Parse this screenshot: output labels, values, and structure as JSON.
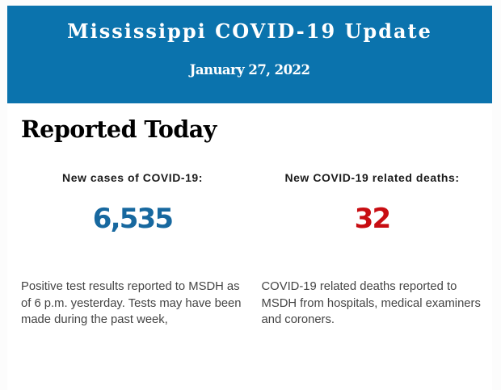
{
  "page": {
    "background_color": "#fcfcfc",
    "card_background_color": "#ffffff"
  },
  "header": {
    "title": "Mississippi COVID-19 Update",
    "date": "January 27, 2022",
    "background_color": "#0b73ad",
    "text_color": "#ffffff"
  },
  "report": {
    "heading": "Reported Today",
    "stats": [
      {
        "label": "New cases of COVID-19:",
        "value": "6,535",
        "value_color": "#17689f",
        "description": "Positive test results reported to MSDH as of 6 p.m. yesterday. Tests may have been made during the past week,"
      },
      {
        "label": "New COVID-19 related deaths:",
        "value": "32",
        "value_color": "#c80d12",
        "description": "COVID-19 related deaths reported to MSDH from hospitals, medical examiners and coroners."
      }
    ]
  }
}
